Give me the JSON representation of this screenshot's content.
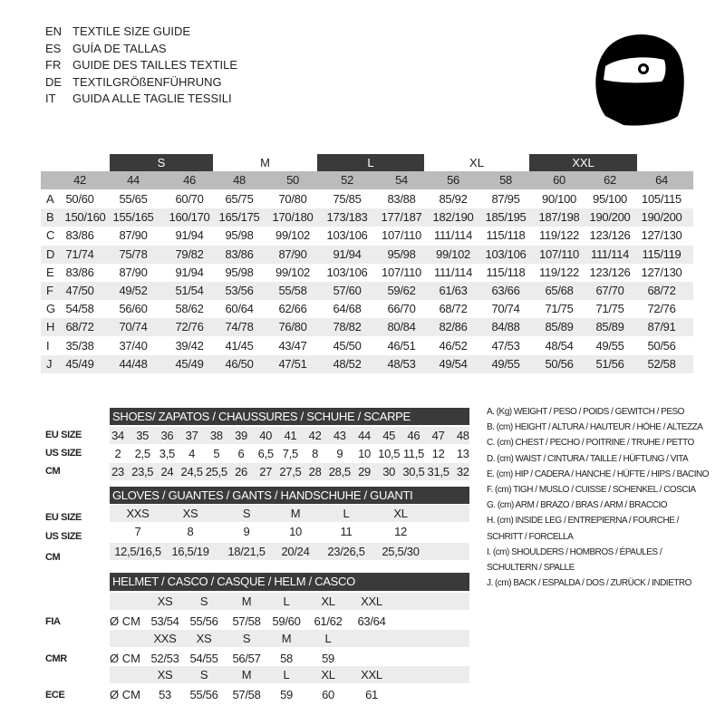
{
  "languages": [
    {
      "code": "EN",
      "title": "TEXTILE SIZE GUIDE"
    },
    {
      "code": "ES",
      "title": "GUÍA DE TALLAS"
    },
    {
      "code": "FR",
      "title": "GUIDE DES TAILLES TEXTILE"
    },
    {
      "code": "DE",
      "title": "TEXTILGRÖßENFÜHRUNG"
    },
    {
      "code": "IT",
      "title": "GUIDA ALLE TAGLIE TESSILI"
    }
  ],
  "icon": "helmet-icon",
  "colors": {
    "header_dark": "#3a3a3a",
    "header_gray": "#bbbbbb",
    "row_shade": "#ececec"
  },
  "textile": {
    "size_groups": [
      "S",
      "M",
      "L",
      "XL",
      "XXL"
    ],
    "columns": [
      "42",
      "44",
      "46",
      "48",
      "50",
      "52",
      "54",
      "56",
      "58",
      "60",
      "62",
      "64"
    ],
    "rows": [
      {
        "label": "A",
        "values": [
          "50/60",
          "55/65",
          "60/70",
          "65/75",
          "70/80",
          "75/85",
          "83/88",
          "85/92",
          "87/95",
          "90/100",
          "95/100",
          "105/115"
        ]
      },
      {
        "label": "B",
        "values": [
          "150/160",
          "155/165",
          "160/170",
          "165/175",
          "170/180",
          "173/183",
          "177/187",
          "182/190",
          "185/195",
          "187/198",
          "190/200",
          "190/200"
        ]
      },
      {
        "label": "C",
        "values": [
          "83/86",
          "87/90",
          "91/94",
          "95/98",
          "99/102",
          "103/106",
          "107/110",
          "111/114",
          "115/118",
          "119/122",
          "123/126",
          "127/130"
        ]
      },
      {
        "label": "D",
        "values": [
          "71/74",
          "75/78",
          "79/82",
          "83/86",
          "87/90",
          "91/94",
          "95/98",
          "99/102",
          "103/106",
          "107/110",
          "111/114",
          "115/119"
        ]
      },
      {
        "label": "E",
        "values": [
          "83/86",
          "87/90",
          "91/94",
          "95/98",
          "99/102",
          "103/106",
          "107/110",
          "111/114",
          "115/118",
          "119/122",
          "123/126",
          "127/130"
        ]
      },
      {
        "label": "F",
        "values": [
          "47/50",
          "49/52",
          "51/54",
          "53/56",
          "55/58",
          "57/60",
          "59/62",
          "61/63",
          "63/66",
          "65/68",
          "67/70",
          "68/72"
        ]
      },
      {
        "label": "G",
        "values": [
          "54/58",
          "56/60",
          "58/62",
          "60/64",
          "62/66",
          "64/68",
          "66/70",
          "68/72",
          "70/74",
          "71/75",
          "71/75",
          "72/76"
        ]
      },
      {
        "label": "H",
        "values": [
          "68/72",
          "70/74",
          "72/76",
          "74/78",
          "76/80",
          "78/82",
          "80/84",
          "82/86",
          "84/88",
          "85/89",
          "85/89",
          "87/91"
        ]
      },
      {
        "label": "I",
        "values": [
          "35/38",
          "37/40",
          "39/42",
          "41/45",
          "43/47",
          "45/50",
          "46/51",
          "46/52",
          "47/53",
          "48/54",
          "49/55",
          "50/56"
        ]
      },
      {
        "label": "J",
        "values": [
          "45/49",
          "44/48",
          "45/49",
          "46/50",
          "47/51",
          "48/52",
          "48/53",
          "49/54",
          "49/55",
          "50/56",
          "51/56",
          "52/58"
        ]
      }
    ]
  },
  "shoes": {
    "title": "SHOES/ ZAPATOS / CHAUSSURES / SCHUHE / SCARPE",
    "rows": [
      {
        "label": "EU SIZE",
        "values": [
          "34",
          "35",
          "36",
          "37",
          "38",
          "39",
          "40",
          "41",
          "42",
          "43",
          "44",
          "45",
          "46",
          "47",
          "48"
        ]
      },
      {
        "label": "US SIZE",
        "values": [
          "2",
          "2,5",
          "3,5",
          "4",
          "5",
          "6",
          "6,5",
          "7,5",
          "8",
          "9",
          "10",
          "10,5",
          "11,5",
          "12",
          "13"
        ]
      },
      {
        "label": "CM",
        "values": [
          "23",
          "23,5",
          "24",
          "24,5",
          "25,5",
          "26",
          "27",
          "27,5",
          "28",
          "28,5",
          "29",
          "30",
          "30,5",
          "31,5",
          "32"
        ]
      }
    ]
  },
  "gloves": {
    "title": "GLOVES / GUANTES / GANTS / HANDSCHUHE / GUANTI",
    "rows": [
      {
        "label": "EU SIZE",
        "values": [
          "XXS",
          "XS",
          "S",
          "M",
          "L",
          "XL"
        ]
      },
      {
        "label": "US SIZE",
        "values": [
          "7",
          "8",
          "9",
          "10",
          "11",
          "12"
        ]
      },
      {
        "label": "CM",
        "values": [
          "12,5/16,5",
          "16,5/19",
          "18/21,5",
          "20/24",
          "23/26,5",
          "25,5/30"
        ]
      }
    ]
  },
  "helmet": {
    "title": "HELMET / CASCO / CASQUE / HELM / CASCO",
    "unit": "Ø CM",
    "standards": [
      {
        "label": "FIA",
        "sizes": [
          "XS",
          "S",
          "M",
          "L",
          "XL",
          "XXL"
        ],
        "values": [
          "53/54",
          "55/56",
          "57/58",
          "59/60",
          "61/62",
          "63/64"
        ]
      },
      {
        "label": "CMR",
        "sizes": [
          "XXS",
          "XS",
          "S",
          "M",
          "L"
        ],
        "values": [
          "52/53",
          "54/55",
          "56/57",
          "58",
          "59"
        ]
      },
      {
        "label": "ECE",
        "sizes": [
          "XS",
          "S",
          "M",
          "L",
          "XL",
          "XXL"
        ],
        "values": [
          "53",
          "55/56",
          "57/58",
          "59",
          "60",
          "61"
        ]
      }
    ]
  },
  "legend": [
    "A. (Kg) WEIGHT / PESO / POIDS / GEWITCH / PESO",
    "B. (cm) HEIGHT / ALTURA / HAUTEUR / HÖHE / ALTEZZA",
    "C. (cm) CHEST / PECHO / POITRINE / TRUHE / PETTO",
    "D. (cm) WAIST / CINTURA / TAILLE / HÜFTUNG / VITA",
    "E. (cm) HIP / CADERA / HANCHE / HÜFTE / HIPS /  BACINO",
    "F.  (cm) TIGH / MUSLO / CUISSE / SCHENKEL / COSCIA",
    "G. (cm) ARM  / BRAZO / BRAS / ARM / BRACCIO",
    "H. (cm) INSIDE LEG / ENTREPIERNA / FOURCHE /",
    "SCHRITT / FORCELLA",
    "I.  (cm) SHOULDERS / HOMBROS / ÉPAULES /",
    "SCHULTERN / SPALLE",
    "J. (cm) BACK / ESPALDA / DOS / ZURÜCK / INDIETRO"
  ]
}
